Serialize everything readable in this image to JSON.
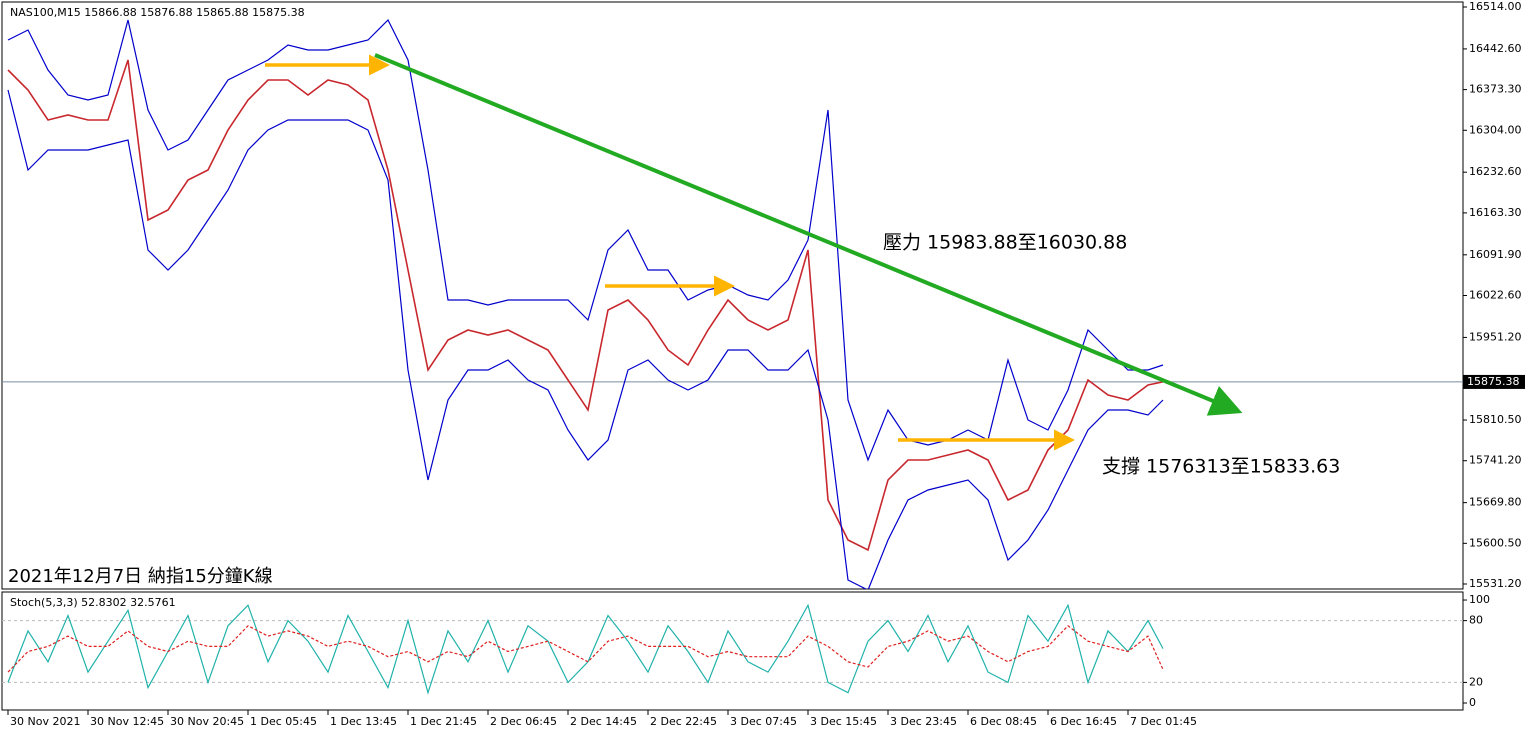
{
  "chart_data": [
    {
      "type": "line",
      "title": "NAS100,M15  15866.88 15876.88 15865.88 15875.38",
      "annotations": [
        "壓力 15983.88至16030.88",
        "支撐 1576313至15833.63",
        "2021年12月7日 納指15分鐘K線"
      ],
      "x": [
        0,
        0.25,
        0.5,
        0.75,
        1,
        1.25,
        1.5,
        1.75,
        2,
        2.25,
        2.5,
        2.75,
        3,
        3.25,
        3.5,
        3.75,
        4,
        4.25,
        4.5,
        4.75,
        5,
        5.25,
        5.5,
        5.75,
        6,
        6.25,
        6.5,
        6.75,
        7,
        7.25,
        7.5,
        7.75,
        8,
        8.25,
        8.5,
        8.75,
        9,
        9.25,
        9.5,
        9.75,
        10,
        10.25,
        10.5,
        10.75,
        11,
        11.25,
        11.5,
        11.75,
        12,
        12.25,
        12.5,
        12.75,
        13,
        13.25,
        13.5,
        13.75,
        14,
        14.25,
        14.4375
      ],
      "series": [
        {
          "name": "Close",
          "color": "#c8282d",
          "values": [
            16406.7,
            16372.6,
            16321.5,
            16330,
            16321.5,
            16321.5,
            16423.7,
            16151.2,
            16168.2,
            16219.3,
            16236.4,
            16304.5,
            16355.6,
            16389.7,
            16389.7,
            16364.1,
            16389.7,
            16381.1,
            16355.6,
            16236.4,
            16066,
            15895.7,
            15946.8,
            15963.8,
            15955.3,
            15963.8,
            15946.8,
            15929.8,
            15878.7,
            15827.6,
            15997.9,
            16014.9,
            15980.9,
            15929.8,
            15904.2,
            15963.8,
            16014.9,
            15980.9,
            15963.8,
            15980.9,
            16100.1,
            15674.3,
            15606.2,
            15589.2,
            15708.3,
            15742.4,
            15742.4,
            15750.9,
            15759.4,
            15742.4,
            15674.3,
            15691.3,
            15759.4,
            15793.5,
            15878.7,
            15853.1,
            15844.6,
            15870.2,
            15875.38
          ]
        },
        {
          "name": "Upper Band",
          "color": "#0000cc",
          "values": [
            16457.8,
            16474.8,
            16406.7,
            16364.1,
            16355.6,
            16364.1,
            16491.9,
            16338.6,
            16270.4,
            16287.5,
            16338.6,
            16389.7,
            16406.7,
            16423.7,
            16449.3,
            16440.8,
            16440.8,
            16449.3,
            16457.8,
            16491.9,
            16423.7,
            16236.4,
            16014.9,
            16014.9,
            16006.4,
            16014.9,
            16014.9,
            16014.9,
            16014.9,
            15980.9,
            16100.1,
            16134.2,
            16066,
            16066,
            16014.9,
            16031.9,
            16040.5,
            16023.4,
            16014.9,
            16049,
            16117.1,
            16338.6,
            15844.6,
            15742.4,
            15827.6,
            15776.5,
            15768,
            15776.5,
            15793.5,
            15776.5,
            15912.7,
            15810.5,
            15793.5,
            15861.6,
            15963.8,
            15929.8,
            15895.7,
            15895.7,
            15904.2
          ]
        },
        {
          "name": "Lower Band",
          "color": "#0000cc",
          "values": [
            16372.6,
            16236.4,
            16270.4,
            16270.4,
            16270.4,
            16279,
            16287.5,
            16100.1,
            16066,
            16100.1,
            16151.2,
            16202.3,
            16270.4,
            16304.5,
            16321.5,
            16321.5,
            16321.5,
            16321.5,
            16304.5,
            16219.3,
            15895.7,
            15708.3,
            15844.6,
            15895.7,
            15895.7,
            15912.7,
            15878.7,
            15861.6,
            15793.5,
            15742.4,
            15776.5,
            15895.7,
            15912.7,
            15878.7,
            15861.6,
            15878.7,
            15929.8,
            15929.8,
            15895.7,
            15895.7,
            15929.8,
            15810.5,
            15538,
            15520.9,
            15606.2,
            15674.3,
            15691.3,
            15699.8,
            15708.3,
            15674.3,
            15572.1,
            15606.2,
            15657.3,
            15725.4,
            15793.5,
            15827.6,
            15827.6,
            15819,
            15844.6
          ]
        }
      ],
      "trendline": {
        "x": [
          4.5875,
          15.3375
        ],
        "values": [
          16432.2,
          15827.6
        ],
        "color": "#22aa22"
      },
      "arrows": [
        {
          "x": [
            3.2125,
            4.6875
          ],
          "values": [
            16415.2,
            16415.2
          ],
          "color": "#ffb400"
        },
        {
          "x": [
            7.4625,
            9.0
          ],
          "values": [
            16038.8,
            16038.8
          ],
          "color": "#ffb400"
        },
        {
          "x": [
            11.125,
            13.25
          ],
          "values": [
            15776.5,
            15776.5
          ],
          "color": "#ffb400"
        }
      ],
      "last_price": 15875.38,
      "xlim": [
        -0.075,
        18.1875
      ],
      "ylim": [
        15522.7,
        16522.5
      ],
      "yticks": [
        {
          "value": 15531.2,
          "label": "15531.20"
        },
        {
          "value": 15600.5,
          "label": "15600.50"
        },
        {
          "value": 15669.8,
          "label": "15669.80"
        },
        {
          "value": 15741.2,
          "label": "15741.20"
        },
        {
          "value": 15810.5,
          "label": "15810.50"
        },
        {
          "value": 15951.2,
          "label": "15951.20"
        },
        {
          "value": 16022.6,
          "label": "16022.60"
        },
        {
          "value": 16091.9,
          "label": "16091.90"
        },
        {
          "value": 16163.3,
          "label": "16163.30"
        },
        {
          "value": 16232.6,
          "label": "16232.60"
        },
        {
          "value": 16304,
          "label": "16304.00"
        },
        {
          "value": 16373.3,
          "label": "16373.30"
        },
        {
          "value": 16442.6,
          "label": "16442.60"
        },
        {
          "value": 16514,
          "label": "16514.00"
        }
      ],
      "xticks": [
        {
          "value": 0,
          "label": "30 Nov 2021"
        },
        {
          "value": 1,
          "label": "30 Nov 12:45"
        },
        {
          "value": 2,
          "label": "30 Nov 20:45"
        },
        {
          "value": 3,
          "label": "1 Dec 05:45"
        },
        {
          "value": 4,
          "label": "1 Dec 13:45"
        },
        {
          "value": 5,
          "label": "1 Dec 21:45"
        },
        {
          "value": 6,
          "label": "2 Dec 06:45"
        },
        {
          "value": 7,
          "label": "2 Dec 14:45"
        },
        {
          "value": 8,
          "label": "2 Dec 22:45"
        },
        {
          "value": 9,
          "label": "3 Dec 07:45"
        },
        {
          "value": 10,
          "label": "3 Dec 15:45"
        },
        {
          "value": 11,
          "label": "3 Dec 23:45"
        },
        {
          "value": 12,
          "label": "6 Dec 08:45"
        },
        {
          "value": 13,
          "label": "6 Dec 16:45"
        },
        {
          "value": 14,
          "label": "7 Dec 01:45"
        }
      ]
    },
    {
      "type": "line",
      "title": "Stoch(5,3,3) 52.8302 32.5761",
      "x": [
        0,
        0.25,
        0.5,
        0.75,
        1,
        1.25,
        1.5,
        1.75,
        2,
        2.25,
        2.5,
        2.75,
        3,
        3.25,
        3.5,
        3.75,
        4,
        4.25,
        4.5,
        4.75,
        5,
        5.25,
        5.5,
        5.75,
        6,
        6.25,
        6.5,
        6.75,
        7,
        7.25,
        7.5,
        7.75,
        8,
        8.25,
        8.5,
        8.75,
        9,
        9.25,
        9.5,
        9.75,
        10,
        10.25,
        10.5,
        10.75,
        11,
        11.25,
        11.5,
        11.75,
        12,
        12.25,
        12.5,
        12.75,
        13,
        13.25,
        13.5,
        13.75,
        14,
        14.25,
        14.4375
      ],
      "series": [
        {
          "name": "%K",
          "color": "#20b2aa",
          "values": [
            20,
            70,
            40,
            85,
            30,
            60,
            90,
            15,
            50,
            85,
            20,
            75,
            95,
            40,
            80,
            60,
            30,
            85,
            50,
            15,
            80,
            10,
            70,
            40,
            80,
            30,
            75,
            60,
            20,
            40,
            85,
            60,
            30,
            75,
            50,
            20,
            70,
            40,
            30,
            60,
            95,
            20,
            10,
            60,
            80,
            50,
            85,
            40,
            75,
            30,
            20,
            85,
            60,
            95,
            20,
            70,
            50,
            80,
            52.8302
          ]
        },
        {
          "name": "%D",
          "color": "#e02020",
          "dashed": true,
          "values": [
            30,
            50,
            55,
            65,
            55,
            55,
            70,
            55,
            50,
            60,
            55,
            55,
            75,
            65,
            70,
            65,
            55,
            60,
            55,
            45,
            50,
            40,
            50,
            45,
            60,
            50,
            55,
            60,
            50,
            40,
            60,
            65,
            55,
            55,
            55,
            45,
            50,
            45,
            45,
            45,
            65,
            55,
            40,
            35,
            55,
            60,
            70,
            60,
            65,
            50,
            40,
            50,
            55,
            75,
            60,
            55,
            50,
            65,
            32.5761
          ]
        }
      ],
      "levels": [
        80,
        20
      ],
      "xlim": [
        -0.075,
        18.1875
      ],
      "ylim": [
        -6.8,
        107.8
      ],
      "yticks": [
        0,
        20,
        80,
        100
      ]
    }
  ]
}
